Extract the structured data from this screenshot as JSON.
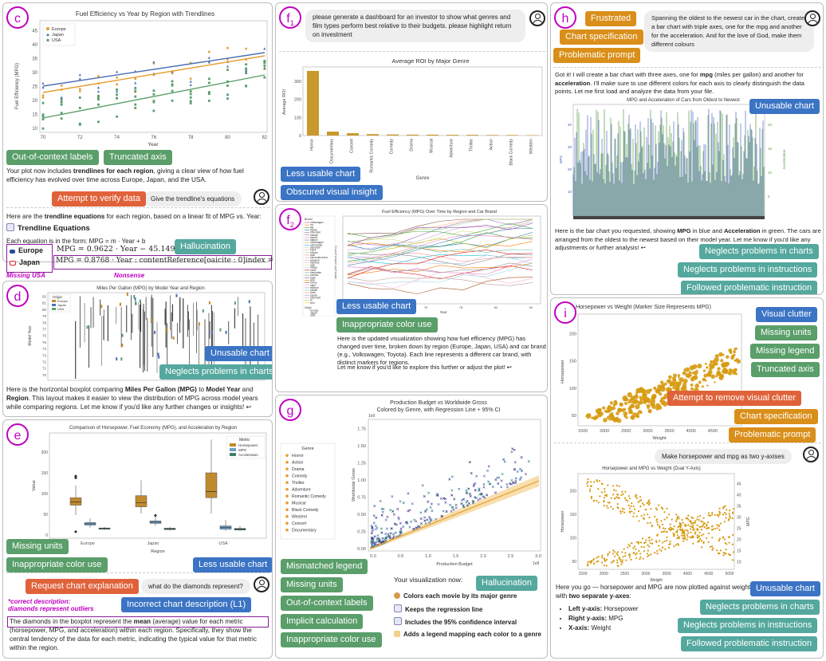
{
  "panels": {
    "c": {
      "label": "c",
      "chart": {
        "title": "Fuel Efficiency vs Year by Region with Trendlines",
        "xlabel": "Year",
        "ylabel": "Fuel Efficiency (MPG)",
        "legend": [
          "Europe",
          "Japan",
          "USA"
        ],
        "xticks": [
          "70",
          "72",
          "74",
          "76",
          "78",
          "80",
          "82"
        ],
        "yticks": [
          "10",
          "15",
          "20",
          "25",
          "30",
          "35",
          "40",
          "45"
        ]
      },
      "tags": [
        "Out-of-context labels",
        "Truncated axis",
        "Attempt to verify data",
        "Hallucination"
      ],
      "text1": "Your plot now includes ",
      "text1b": "trendlines for each region",
      "text1c": ", giving a clear view of how fuel efficiency has evolved over time across Europe, Japan, and the USA.",
      "user": "Give the trendline's equations",
      "text2": "Here are the ",
      "text2b": "trendline equations",
      "text2c": " for each region, based on a linear fit of MPG vs. Year:",
      "heading": "Trendline Equations",
      "form": "Each equation is in the form:   MPG = m · Year + b",
      "eq_europe_label": "Europe",
      "eq_europe": "MPG = 0.9622 · Year − 45.1490",
      "eq_japan_label": "Japan",
      "eq_japan": "MPG = 0.8768 · Year : contentReference[oaicite : 0]index = 0",
      "missing": "Missing USA",
      "nonsense": "Nonsense"
    },
    "d": {
      "label": "d",
      "chart": {
        "title": "Miles Per Gallon (MPG) by Model Year and Region",
        "ylabel": "Model Year",
        "legend_title": "Origin",
        "legend": [
          "Europe",
          "Japan",
          "USA"
        ],
        "yticks": [
          "82",
          "81",
          "80",
          "79",
          "78",
          "77",
          "76",
          "75",
          "74",
          "73",
          "72",
          "71",
          "70"
        ]
      },
      "tags": [
        "Unusable chart",
        "Neglects problems in charts"
      ],
      "text": "Here is the horizontal boxplot comparing ",
      "textb1": "Miles Per Gallon (MPG)",
      "textm": " to ",
      "textb2": "Model Year",
      "textm2": " and ",
      "textb3": "Region",
      "textc": ". This layout makes it easier to view the distribution of MPG across model years while comparing regions. Let me know if you'd like any further changes or insights! ↩"
    },
    "e": {
      "label": "e",
      "chart": {
        "title": "Comparison of Horsepower, Fuel Economy (MPG), and Acceleration by Region",
        "xlabel": "Region",
        "ylabel": "Value",
        "legend_title": "Metric",
        "legend": [
          "Horsepower",
          "MPG",
          "Acceleration"
        ],
        "categories": [
          "Europe",
          "Japan",
          "USA"
        ],
        "yticks": [
          "0",
          "50",
          "100",
          "150",
          "200"
        ]
      },
      "tags": [
        "Missing units",
        "Inappropriate color use",
        "Less usable chart",
        "Request chart explanation",
        "Incorrect chart description (L1)"
      ],
      "user": "what do the diamonds represent?",
      "correct": "*correct description:",
      "correct2": "diamonds represent outliers",
      "text1": "The diamonds in the boxplot represent the ",
      "textb": "mean",
      "text2": " (average) value for each metric (horsepower, MPG, and acceleration) within each region. Specifically, they show the central tendency of the data for each metric, indicating the typical value for that metric within the region."
    },
    "f1": {
      "label": "f",
      "sub": "1",
      "user": "please generate a dashboard for an investor to show what genres and film types perform best relative to their budgets. please highlight return on investment",
      "chart": {
        "title": "Average ROI by Major Genre",
        "xlabel": "Genre",
        "ylabel": "Average ROI",
        "categories": [
          "Horror",
          "Documentary",
          "Concert",
          "Romantic Comedy",
          "Comedy",
          "Drama",
          "Musical",
          "Adventure",
          "Thriller",
          "Action",
          "Black Comedy",
          "Western"
        ],
        "values": [
          358,
          22,
          13,
          8,
          6,
          5,
          5,
          4,
          4,
          3,
          3,
          2
        ],
        "yticks": [
          "0",
          "100",
          "200",
          "300"
        ],
        "ylim": [
          0,
          380
        ]
      },
      "tags": [
        "Less usable chart",
        "Obscured visual insight"
      ]
    },
    "f2": {
      "label": "f",
      "sub": "2",
      "chart": {
        "title": "Fuel Efficiency (MPG) Over Time by Region and Car Brand",
        "xlabel": "Year",
        "ylabel": "Miles per Gallon (MPG)",
        "legend_title": "Brand",
        "brands": [
          "volkswagen",
          "vw",
          "fiat",
          "toyota",
          "chevrolet",
          "mazda",
          "honda",
          "datsun",
          "volkswagen",
          "oldsmobile",
          "plymouth",
          "buick",
          "subaru",
          "audi",
          "mercedes-benz",
          "peugeot",
          "mercury",
          "opel",
          "dodge",
          "volvo",
          "mercedes",
          "pontiac",
          "saab",
          "amc",
          "chevy",
          "capri",
          "triumph",
          "nissan",
          "bmw",
          "toyota",
          "chevroelt",
          "hi",
          "ford"
        ],
        "origin_title": "Origin",
        "origins": [
          "Europe",
          "Japan",
          "USA"
        ],
        "xticks": [
          "72",
          "74",
          "76",
          "78",
          "80",
          "82"
        ]
      },
      "tags": [
        "Less usable chart",
        "Inappropriate color use"
      ],
      "text": "Here is the updated visualization showing how fuel efficiency (MPG) has changed over time, broken down by region (Europe, Japan, USA) and car brand (e.g., Volkswagen, Toyota). Each line represents a different car brand, with distinct markers for regions.",
      "text2": "Let me know if you'd like to explore this further or adjust the plot! ↩"
    },
    "g": {
      "label": "g",
      "chart": {
        "title": "Production Budget vs Worldwide Gross",
        "subtitle": "Colored by Genre, with Regression Line + 95% CI",
        "xlabel": "Production Budget",
        "ylabel": "Worldwide Gross",
        "xexp": "1e8",
        "yexp": "1e9",
        "legend_title": "Genre",
        "legend": [
          "Horror",
          "Action",
          "Drama",
          "Comedy",
          "Thriller",
          "Adventure",
          "Romantic Comedy",
          "Musical",
          "Black Comedy",
          "Western",
          "Concert",
          "Documentary"
        ],
        "xticks": [
          "0.0",
          "0.5",
          "1.0",
          "1.5",
          "2.0",
          "2.5",
          "3.0"
        ],
        "yticks": [
          "0.00",
          "0.25",
          "0.50",
          "0.75",
          "1.00",
          "1.25",
          "1.50",
          "1.75"
        ]
      },
      "tags": [
        "Mismatched legend",
        "Missing units",
        "Out-of-context labels",
        "Implicit calculation",
        "Inappropriate color use",
        "Hallucination"
      ],
      "intro": "Your visualization now:",
      "bullets": [
        "Colors each movie by its major genre",
        "Keeps the regression line",
        "Includes the 95% confidence interval",
        "Adds a legend mapping each color to a genre"
      ]
    },
    "h": {
      "label": "h",
      "tags": [
        "Frustrated",
        "Chart specification",
        "Problematic prompt",
        "Unusable chart",
        "Neglects problems in charts",
        "Neglects problems in instructions",
        "Followed problematic instruction"
      ],
      "user": "Spanning the oldest to the newest car in the chart, create a bar chart with triple axes, one for the mpg and another for the acceleration. And for the love of God, make them different colours",
      "reply1": "Got it! I will create a bar chart with three axes, one for ",
      "reply1b": "mpg",
      "reply1c": " (miles per gallon) and another for ",
      "reply1d": "acceleration",
      "reply1e": ". I'll make sure to use different colors for each axis to clearly distinguish the data points. Let me first load and analyze the data from your file.",
      "chart": {
        "title": "MPG and Acceleration of Cars from Oldest to Newest",
        "ylabel": "MPG",
        "ylabel2": "Acceleration",
        "yticks": [
          "10",
          "20",
          "30",
          "40"
        ],
        "yticks2": [
          "5",
          "10",
          "15",
          "20"
        ]
      },
      "reply2": "Here is the bar chart you requested, showing ",
      "reply2b": "MPG",
      "reply2c": " in blue and ",
      "reply2d": "Acceleration",
      "reply2e": " in green. The cars are arranged from the oldest to the newest based on their model year. Let me know if you'd like any adjustments or further analysis! ↩"
    },
    "i": {
      "label": "i",
      "chart1": {
        "title": "Horsepower vs Weight (Marker Size Represents MPG)",
        "xlabel": "Weight",
        "ylabel": "Horsepower",
        "xticks": [
          "1500",
          "2000",
          "2500",
          "3000",
          "3500",
          "4000",
          "4500",
          "5000"
        ],
        "yticks": [
          "50",
          "100",
          "150",
          "200"
        ]
      },
      "tags": [
        "Visual clutter",
        "Missing units",
        "Missing legend",
        "Truncated axis",
        "Attempt to remove visual clutter",
        "Chart specification",
        "Problematic prompt",
        "Unusable chart",
        "Neglects problems in charts",
        "Neglects problems in instructions",
        "Followed problematic instruction"
      ],
      "user": "Make horsepower and mpg as two y-axises",
      "chart2": {
        "title": "Horsepower and MPG vs Weight (Dual Y-Axis)",
        "xlabel": "Weight",
        "ylabel": "Horsepower",
        "ylabel2": "MPG",
        "xticks": [
          "1500",
          "2000",
          "2500",
          "3000",
          "3500",
          "4000",
          "4500",
          "5000"
        ],
        "yticks": [
          "50",
          "100",
          "150",
          "200"
        ],
        "yticks2": [
          "10",
          "15",
          "20",
          "25",
          "30",
          "35",
          "40",
          "45"
        ]
      },
      "reply1": "Here you go — horsepower and MPG are now plotted against weight with ",
      "reply1b": "two separate y-axes",
      "reply1c": ":",
      "bullets": [
        {
          "b": "Left y-axis:",
          "t": " Horsepower"
        },
        {
          "b": "Right y-axis:",
          "t": " MPG"
        },
        {
          "b": "X-axis:",
          "t": " Weight"
        }
      ]
    }
  },
  "colors": {
    "europe": "#4a6fb5",
    "japan": "#e89c2f",
    "usa": "#5a9e6a",
    "purple": "#c000c0"
  }
}
